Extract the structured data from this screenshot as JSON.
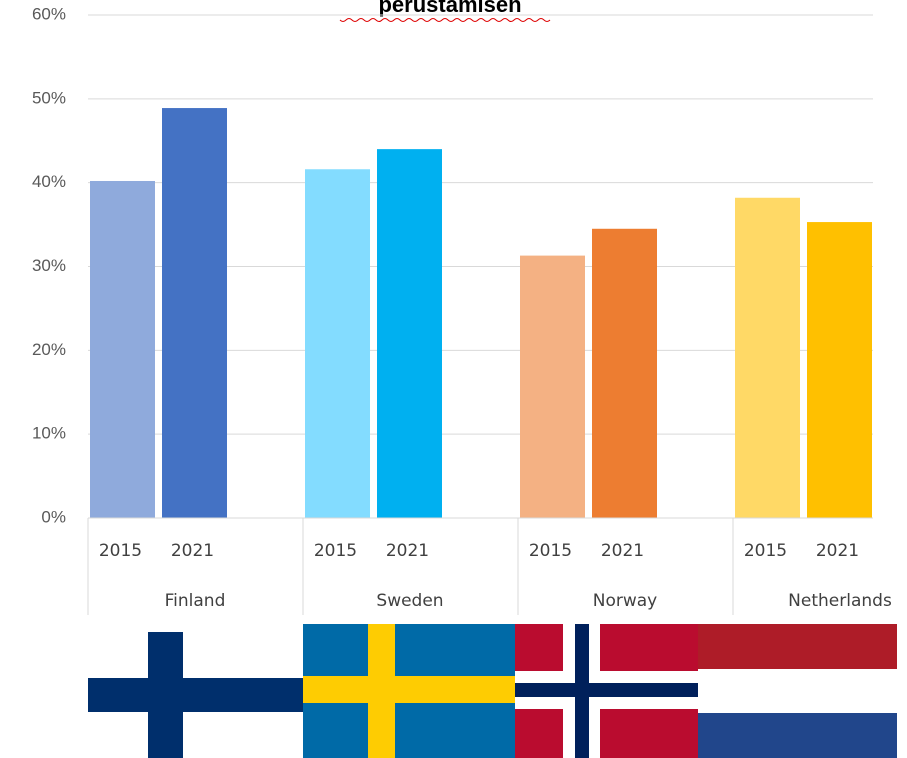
{
  "chart_data": {
    "type": "bar",
    "title": "perustamisen",
    "categories": [
      "Finland",
      "Sweden",
      "Norway",
      "Netherlands"
    ],
    "series": [
      {
        "name": "2015",
        "colors": [
          "#8faadc",
          "#83dcff",
          "#f4b183",
          "#ffd966"
        ],
        "values": [
          40.2,
          41.6,
          31.3,
          38.2
        ]
      },
      {
        "name": "2021",
        "colors": [
          "#4472c4",
          "#00b0f0",
          "#ed7d31",
          "#ffc000"
        ],
        "values": [
          48.9,
          44.0,
          34.5,
          35.3
        ]
      }
    ],
    "ylim": [
      0,
      60
    ],
    "yticks": [
      {
        "value": 0,
        "label": "0%"
      },
      {
        "value": 10,
        "label": "10%"
      },
      {
        "value": 20,
        "label": "20%"
      },
      {
        "value": 30,
        "label": "30%"
      },
      {
        "value": 40,
        "label": "40%"
      },
      {
        "value": 50,
        "label": "50%"
      },
      {
        "value": 60,
        "label": "60%"
      }
    ],
    "grid": true
  }
}
